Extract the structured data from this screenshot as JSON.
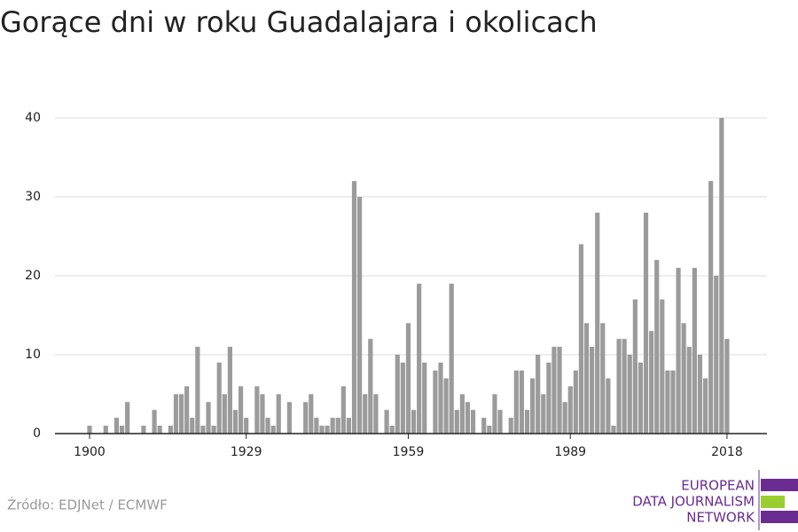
{
  "chart_data": {
    "type": "bar",
    "title": "Gorące dni w roku Guadalajara i okolicach",
    "source": "Źródło: EDJNet / ECMWF",
    "logo": [
      "EUROPEAN",
      "DATA JOURNALISM",
      "NETWORK"
    ],
    "color": "#9b9b9b",
    "grid": true,
    "x": [
      1900,
      1901,
      1902,
      1903,
      1904,
      1905,
      1906,
      1907,
      1908,
      1909,
      1910,
      1911,
      1912,
      1913,
      1914,
      1915,
      1916,
      1917,
      1918,
      1919,
      1920,
      1921,
      1922,
      1923,
      1924,
      1925,
      1926,
      1927,
      1928,
      1929,
      1930,
      1931,
      1932,
      1933,
      1934,
      1935,
      1936,
      1937,
      1938,
      1939,
      1940,
      1941,
      1942,
      1943,
      1944,
      1945,
      1946,
      1947,
      1948,
      1949,
      1950,
      1951,
      1952,
      1953,
      1954,
      1955,
      1956,
      1957,
      1958,
      1959,
      1960,
      1961,
      1962,
      1963,
      1964,
      1965,
      1966,
      1967,
      1968,
      1969,
      1970,
      1971,
      1972,
      1973,
      1974,
      1975,
      1976,
      1977,
      1978,
      1979,
      1980,
      1981,
      1982,
      1983,
      1984,
      1985,
      1986,
      1987,
      1988,
      1989,
      1990,
      1991,
      1992,
      1993,
      1994,
      1995,
      1996,
      1997,
      1998,
      1999,
      2000,
      2001,
      2002,
      2003,
      2004,
      2005,
      2006,
      2007,
      2008,
      2009,
      2010,
      2011,
      2012,
      2013,
      2014,
      2015,
      2016,
      2017,
      2018
    ],
    "values": [
      1,
      0,
      0,
      1,
      0,
      2,
      1,
      4,
      0,
      0,
      1,
      0,
      3,
      1,
      0,
      1,
      5,
      5,
      6,
      2,
      11,
      1,
      4,
      1,
      9,
      5,
      11,
      3,
      6,
      2,
      0,
      6,
      5,
      2,
      1,
      5,
      0,
      4,
      0,
      0,
      4,
      5,
      2,
      1,
      1,
      2,
      2,
      6,
      2,
      32,
      30,
      5,
      12,
      5,
      0,
      3,
      1,
      10,
      9,
      14,
      3,
      19,
      9,
      0,
      8,
      9,
      7,
      19,
      3,
      5,
      4,
      3,
      0,
      2,
      1,
      5,
      3,
      0,
      2,
      8,
      8,
      3,
      7,
      10,
      5,
      9,
      11,
      11,
      4,
      6,
      8,
      24,
      14,
      11,
      28,
      14,
      7,
      1,
      12,
      12,
      10,
      17,
      9,
      28,
      13,
      22,
      17,
      8,
      8,
      21,
      14,
      11,
      21,
      10,
      7,
      32,
      20,
      40,
      12
    ],
    "xlim": [
      1893.6,
      2025.4
    ],
    "xticks": [
      1900,
      1929,
      1959,
      1989,
      2018
    ],
    "ylim": [
      0,
      40
    ],
    "yticks": [
      0,
      10,
      20,
      30,
      40
    ]
  }
}
